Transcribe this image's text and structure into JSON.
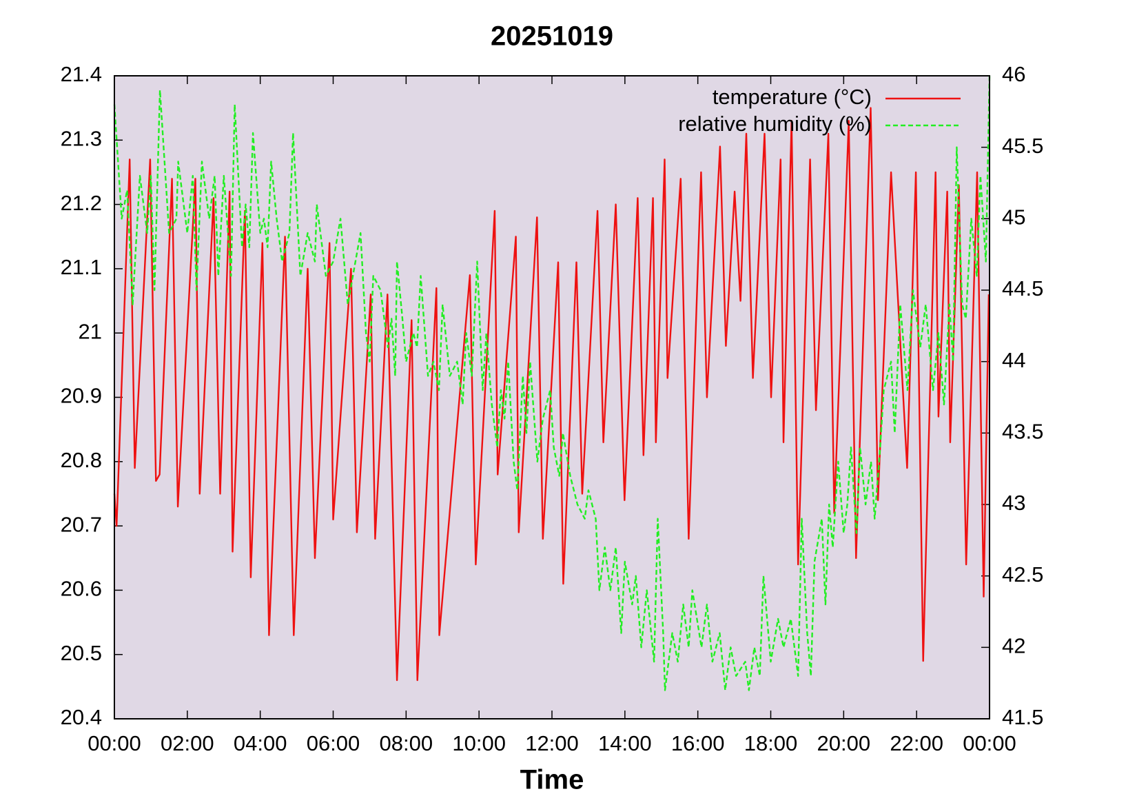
{
  "chart_data": {
    "type": "line",
    "title": "20251019",
    "x_label": "Time",
    "plot_background": "#e0d8e5",
    "xlim": [
      0,
      24
    ],
    "xticks": [
      {
        "value": 0,
        "label": "00:00"
      },
      {
        "value": 2,
        "label": "02:00"
      },
      {
        "value": 4,
        "label": "04:00"
      },
      {
        "value": 6,
        "label": "06:00"
      },
      {
        "value": 8,
        "label": "08:00"
      },
      {
        "value": 10,
        "label": "10:00"
      },
      {
        "value": 12,
        "label": "12:00"
      },
      {
        "value": 14,
        "label": "14:00"
      },
      {
        "value": 16,
        "label": "16:00"
      },
      {
        "value": 18,
        "label": "18:00"
      },
      {
        "value": 20,
        "label": "20:00"
      },
      {
        "value": 22,
        "label": "22:00"
      },
      {
        "value": 24,
        "label": "00:00"
      }
    ],
    "ylim": [
      20.4,
      21.4
    ],
    "yticks": [
      20.4,
      20.5,
      20.6,
      20.7,
      20.8,
      20.9,
      21,
      21.1,
      21.2,
      21.3,
      21.4
    ],
    "y2lim": [
      41.5,
      46
    ],
    "y2ticks": [
      41.5,
      42,
      42.5,
      43,
      43.5,
      44,
      44.5,
      45,
      45.5,
      46
    ],
    "legend": "top-right",
    "series": [
      {
        "name": "temperature (°C)",
        "color": "#ee1111",
        "dash": "solid",
        "x": [
          0,
          0.06,
          0.42,
          0.56,
          0.98,
          1.14,
          1.24,
          1.58,
          1.74,
          2.22,
          2.34,
          2.72,
          2.9,
          3.16,
          3.24,
          3.58,
          3.74,
          4.06,
          4.24,
          4.68,
          4.92,
          5.3,
          5.5,
          5.9,
          6,
          6.49,
          6.65,
          7.03,
          7.15,
          7.49,
          7.75,
          8.15,
          8.31,
          8.83,
          8.91,
          9.75,
          9.91,
          10.43,
          10.51,
          11.01,
          11.09,
          11.59,
          11.75,
          12.17,
          12.31,
          12.67,
          12.83,
          13.25,
          13.41,
          13.75,
          13.99,
          14.35,
          14.51,
          14.77,
          14.85,
          15.09,
          15.17,
          15.53,
          15.75,
          16.09,
          16.25,
          16.61,
          16.77,
          17.01,
          17.17,
          17.33,
          17.51,
          17.83,
          18.01,
          18.27,
          18.35,
          18.57,
          18.75,
          19.08,
          19.24,
          19.58,
          19.74,
          20.14,
          20.34,
          20.74,
          20.94,
          21.3,
          21.74,
          21.98,
          22.18,
          22.52,
          22.6,
          22.84,
          22.92,
          23.16,
          23.36,
          23.66,
          23.84,
          23.98
        ],
        "values": [
          20.75,
          20.7,
          21.27,
          20.79,
          21.27,
          20.77,
          20.78,
          21.24,
          20.73,
          21.24,
          20.75,
          21.21,
          20.75,
          21.22,
          20.66,
          21.19,
          20.62,
          21.14,
          20.53,
          21.15,
          20.53,
          21.1,
          20.65,
          21.14,
          20.71,
          21.1,
          20.69,
          21.06,
          20.68,
          21.06,
          20.46,
          21.02,
          20.46,
          21.07,
          20.53,
          21.09,
          20.64,
          21.19,
          20.78,
          21.15,
          20.69,
          21.18,
          20.68,
          21.11,
          20.61,
          21.11,
          20.75,
          21.19,
          20.83,
          21.2,
          20.74,
          21.21,
          20.81,
          21.21,
          20.83,
          21.27,
          20.93,
          21.24,
          20.68,
          21.25,
          20.9,
          21.29,
          20.98,
          21.22,
          21.05,
          21.31,
          20.93,
          21.31,
          20.9,
          21.27,
          20.83,
          21.33,
          20.64,
          21.27,
          20.88,
          21.31,
          20.72,
          21.33,
          20.65,
          21.35,
          20.74,
          21.25,
          20.79,
          21.25,
          20.49,
          21.25,
          20.87,
          21.22,
          20.83,
          21.23,
          20.64,
          21.25,
          20.59,
          21.06
        ]
      },
      {
        "name": "relative humidity (%)",
        "color": "#22ee22",
        "dash": "dashed",
        "axis": "y2",
        "x": [
          0,
          0.2,
          0.35,
          0.5,
          0.7,
          0.9,
          1,
          1.1,
          1.25,
          1.5,
          1.7,
          1.75,
          2,
          2.15,
          2.25,
          2.4,
          2.6,
          2.75,
          2.85,
          3,
          3.2,
          3.3,
          3.5,
          3.6,
          3.7,
          3.8,
          4,
          4.1,
          4.2,
          4.3,
          4.45,
          4.6,
          4.8,
          4.9,
          5.1,
          5.3,
          5.5,
          5.55,
          5.8,
          6,
          6.2,
          6.4,
          6.75,
          6.9,
          7,
          7.1,
          7.3,
          7.5,
          7.6,
          7.7,
          7.75,
          7.9,
          8,
          8.2,
          8.3,
          8.4,
          8.6,
          8.75,
          8.9,
          9,
          9.2,
          9.4,
          9.55,
          9.65,
          9.8,
          9.95,
          10.1,
          10.2,
          10.35,
          10.5,
          10.6,
          10.7,
          10.8,
          10.95,
          11.05,
          11.2,
          11.3,
          11.4,
          11.6,
          11.75,
          11.95,
          12.05,
          12.2,
          12.3,
          12.5,
          12.7,
          12.9,
          13,
          13.2,
          13.3,
          13.45,
          13.6,
          13.75,
          13.9,
          14,
          14.2,
          14.3,
          14.45,
          14.6,
          14.8,
          14.9,
          15.05,
          15.1,
          15.3,
          15.45,
          15.6,
          15.75,
          15.85,
          16.1,
          16.25,
          16.4,
          16.6,
          16.75,
          16.9,
          17.05,
          17.3,
          17.4,
          17.55,
          17.7,
          17.8,
          18,
          18.2,
          18.35,
          18.55,
          18.75,
          18.85,
          19,
          19.1,
          19.2,
          19.4,
          19.5,
          19.6,
          19.7,
          19.85,
          20,
          20.1,
          20.2,
          20.35,
          20.45,
          20.6,
          20.75,
          20.85,
          21,
          21.1,
          21.3,
          21.4,
          21.55,
          21.75,
          21.9,
          22.1,
          22.25,
          22.45,
          22.6,
          22.75,
          22.9,
          23,
          23.1,
          23.25,
          23.35,
          23.5,
          23.65,
          23.75,
          23.9,
          24
        ],
        "values": [
          45.8,
          45,
          45.2,
          44.4,
          45.3,
          44.9,
          45.3,
          44.5,
          45.9,
          44.9,
          45,
          45.4,
          44.9,
          45.3,
          44.5,
          45.4,
          45,
          45.3,
          44.6,
          45.3,
          44.6,
          45.8,
          44.8,
          45.1,
          44.8,
          45.6,
          44.9,
          45,
          44.8,
          45.4,
          45,
          44.7,
          44.9,
          45.6,
          44.6,
          44.9,
          44.7,
          45.1,
          44.6,
          44.7,
          45,
          44.4,
          44.9,
          44.2,
          44,
          44.6,
          44.5,
          44.1,
          44.3,
          43.9,
          44.7,
          44.3,
          44,
          44.2,
          44.1,
          44.6,
          43.9,
          44,
          43.8,
          44.4,
          43.9,
          44,
          43.7,
          44.2,
          43.9,
          44.7,
          43.8,
          44.2,
          43.7,
          43.4,
          43.8,
          43.6,
          44,
          43.3,
          43.1,
          43.9,
          43.5,
          44,
          43.3,
          43.6,
          43.8,
          43.4,
          43.2,
          43.5,
          43.2,
          43,
          42.9,
          43.1,
          42.9,
          42.4,
          42.7,
          42.4,
          42.7,
          42.1,
          42.6,
          42.3,
          42.5,
          42,
          42.4,
          41.9,
          42.9,
          42.1,
          41.7,
          42.1,
          41.9,
          42.3,
          42,
          42.4,
          42,
          42.3,
          41.9,
          42.1,
          41.7,
          42,
          41.8,
          41.9,
          41.7,
          42,
          41.8,
          42.5,
          41.9,
          42.2,
          42,
          42.2,
          41.8,
          42.9,
          42.1,
          41.8,
          42.6,
          42.9,
          42.3,
          43,
          42.7,
          43.3,
          42.8,
          43,
          43.4,
          42.8,
          43.4,
          43,
          43.3,
          42.9,
          43.4,
          43.8,
          44,
          43.5,
          44.4,
          43.8,
          44.5,
          44.1,
          44.4,
          43.8,
          44.2,
          43.7,
          44.4,
          44,
          45.5,
          44.4,
          44.3,
          45,
          44.6,
          45.3,
          44.7,
          46
        ]
      }
    ]
  }
}
